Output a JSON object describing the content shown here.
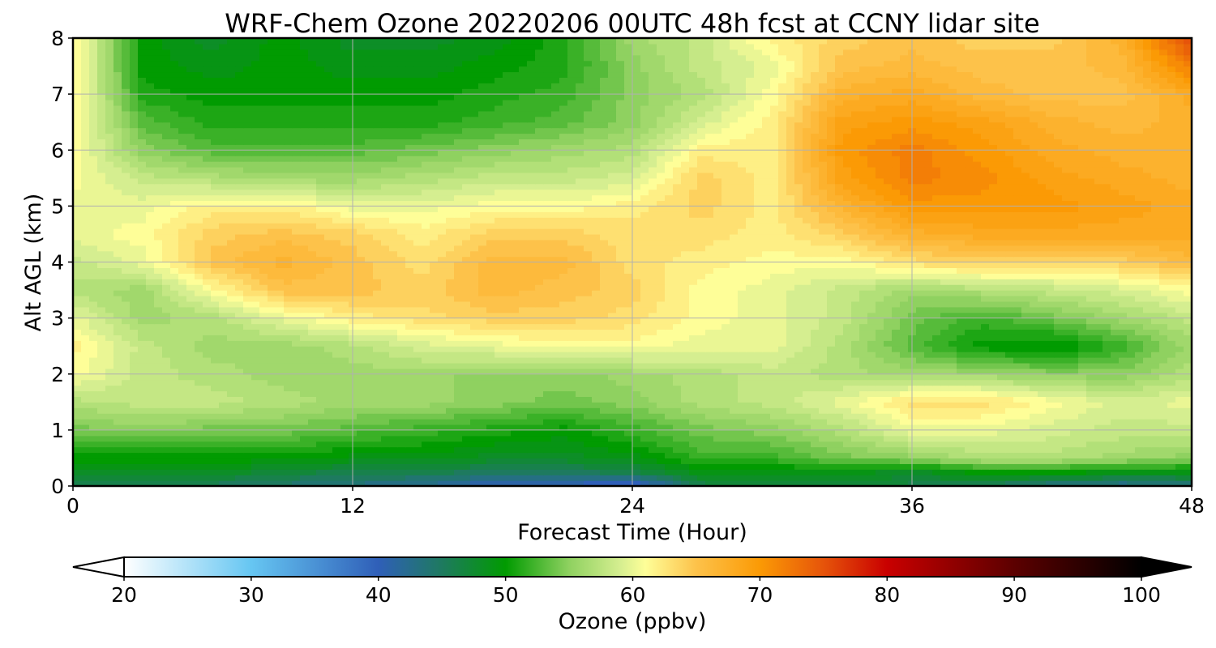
{
  "chart_data": {
    "type": "heatmap",
    "title": "WRF-Chem Ozone  20220206 00UTC 48h fcst at CCNY lidar site",
    "xlabel": "Forecast Time (Hour)",
    "ylabel": "Alt AGL (km)",
    "xlim": [
      0,
      48
    ],
    "ylim": [
      0,
      8
    ],
    "x_ticks": [
      0,
      12,
      24,
      36,
      48
    ],
    "y_ticks": [
      0,
      1,
      2,
      3,
      4,
      5,
      6,
      7,
      8
    ],
    "grid": true,
    "z_units": "ppbv",
    "x": [
      0,
      3,
      6,
      9,
      12,
      15,
      18,
      21,
      24,
      27,
      30,
      33,
      36,
      39,
      42,
      45,
      48
    ],
    "y": [
      0,
      0.25,
      0.5,
      1,
      1.5,
      2,
      2.5,
      3,
      3.5,
      4,
      4.5,
      5,
      5.5,
      6,
      6.5,
      7,
      7.5,
      8
    ],
    "z": [
      [
        46,
        45,
        45,
        44,
        43,
        42,
        40,
        40,
        38,
        46,
        46,
        47,
        46,
        45,
        43,
        42,
        43
      ],
      [
        48,
        48,
        48,
        47,
        46,
        46,
        45,
        45,
        46,
        49,
        49,
        49,
        48,
        50,
        50,
        49,
        49
      ],
      [
        50,
        50,
        50,
        50,
        49,
        49,
        48,
        48,
        49,
        52,
        52,
        54,
        55,
        57,
        57,
        56,
        55
      ],
      [
        54,
        55,
        54,
        54,
        53,
        52,
        51,
        50,
        52,
        54,
        55,
        57,
        60,
        60,
        59,
        58,
        58
      ],
      [
        57,
        58,
        58,
        57,
        56,
        56,
        55,
        54,
        55,
        57,
        58,
        60,
        63,
        63,
        61,
        59,
        60
      ],
      [
        61,
        58,
        57,
        56,
        56,
        56,
        55,
        55,
        56,
        57,
        58,
        57,
        56,
        56,
        55,
        55,
        57
      ],
      [
        62,
        58,
        56,
        56,
        57,
        59,
        60,
        61,
        61,
        60,
        60,
        57,
        53,
        50,
        49,
        52,
        56
      ],
      [
        60,
        56,
        57,
        60,
        62,
        63,
        64,
        64,
        63,
        61,
        60,
        58,
        54,
        52,
        54,
        56,
        58
      ],
      [
        57,
        56,
        61,
        65,
        65,
        64,
        66,
        65,
        64,
        61,
        60,
        58,
        56,
        57,
        58,
        59,
        61
      ],
      [
        58,
        60,
        65,
        67,
        65,
        63,
        66,
        66,
        63,
        62,
        61,
        61,
        63,
        64,
        63,
        64,
        66
      ],
      [
        60,
        61,
        64,
        65,
        64,
        62,
        64,
        64,
        63,
        63,
        62,
        64,
        67,
        68,
        68,
        68,
        68
      ],
      [
        60,
        60,
        62,
        62,
        60,
        60,
        61,
        61,
        62,
        64,
        62,
        67,
        70,
        70,
        70,
        69,
        68
      ],
      [
        61,
        58,
        57,
        56,
        56,
        57,
        58,
        58,
        59,
        64,
        62,
        69,
        72,
        71,
        69,
        68,
        67
      ],
      [
        61,
        55,
        53,
        53,
        53,
        54,
        55,
        56,
        57,
        62,
        62,
        70,
        72,
        70,
        68,
        67,
        67
      ],
      [
        62,
        53,
        51,
        51,
        51,
        51,
        52,
        53,
        55,
        59,
        62,
        69,
        70,
        69,
        67,
        66,
        67
      ],
      [
        62,
        51,
        50,
        50,
        50,
        50,
        51,
        52,
        55,
        57,
        61,
        67,
        68,
        66,
        65,
        65,
        68
      ],
      [
        62,
        50,
        49,
        50,
        49,
        49,
        50,
        51,
        55,
        58,
        60,
        65,
        66,
        65,
        65,
        66,
        72
      ],
      [
        62,
        50,
        48,
        50,
        48,
        48,
        49,
        51,
        56,
        58,
        62,
        64,
        65,
        64,
        64,
        67,
        76
      ]
    ],
    "colorbar": {
      "label": "Ozone  (ppbv)",
      "min": 20,
      "max": 100,
      "ticks": [
        20,
        30,
        40,
        50,
        60,
        70,
        80,
        90,
        100
      ],
      "extend": "both",
      "stops": [
        {
          "v": 20,
          "c": "#ffffff"
        },
        {
          "v": 30,
          "c": "#66c6f2"
        },
        {
          "v": 40,
          "c": "#2f5fb8"
        },
        {
          "v": 45,
          "c": "#1e7a5f"
        },
        {
          "v": 50,
          "c": "#019b01"
        },
        {
          "v": 55,
          "c": "#8fd160"
        },
        {
          "v": 59,
          "c": "#d5ee90"
        },
        {
          "v": 61,
          "c": "#fefe98"
        },
        {
          "v": 65,
          "c": "#fdc24a"
        },
        {
          "v": 70,
          "c": "#fb9a05"
        },
        {
          "v": 75,
          "c": "#e6540a"
        },
        {
          "v": 80,
          "c": "#c90000"
        },
        {
          "v": 90,
          "c": "#5c0000"
        },
        {
          "v": 100,
          "c": "#000000"
        }
      ]
    }
  }
}
